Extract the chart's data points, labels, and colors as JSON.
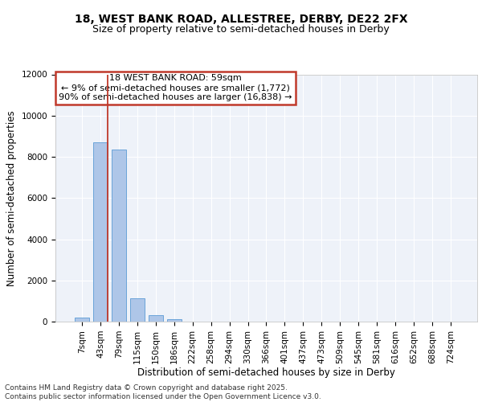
{
  "title_line1": "18, WEST BANK ROAD, ALLESTREE, DERBY, DE22 2FX",
  "title_line2": "Size of property relative to semi-detached houses in Derby",
  "xlabel": "Distribution of semi-detached houses by size in Derby",
  "ylabel": "Number of semi-detached properties",
  "categories": [
    "7sqm",
    "43sqm",
    "79sqm",
    "115sqm",
    "150sqm",
    "186sqm",
    "222sqm",
    "258sqm",
    "294sqm",
    "330sqm",
    "366sqm",
    "401sqm",
    "437sqm",
    "473sqm",
    "509sqm",
    "545sqm",
    "581sqm",
    "616sqm",
    "652sqm",
    "688sqm",
    "724sqm"
  ],
  "values": [
    200,
    8700,
    8350,
    1150,
    330,
    130,
    0,
    0,
    0,
    0,
    0,
    0,
    0,
    0,
    0,
    0,
    0,
    0,
    0,
    0,
    0
  ],
  "bar_color": "#aec6e8",
  "bar_edge_color": "#5b9bd5",
  "vline_x": 1.4,
  "vline_color": "#c0392b",
  "annotation_title": "18 WEST BANK ROAD: 59sqm",
  "annotation_line2": "← 9% of semi-detached houses are smaller (1,772)",
  "annotation_line3": "90% of semi-detached houses are larger (16,838) →",
  "annotation_box_color": "#c0392b",
  "ylim": [
    0,
    12000
  ],
  "yticks": [
    0,
    2000,
    4000,
    6000,
    8000,
    10000,
    12000
  ],
  "footnote_line1": "Contains HM Land Registry data © Crown copyright and database right 2025.",
  "footnote_line2": "Contains public sector information licensed under the Open Government Licence v3.0.",
  "bg_color": "#eef2f9",
  "grid_color": "#ffffff",
  "title_fontsize": 10,
  "subtitle_fontsize": 9,
  "axis_label_fontsize": 8.5,
  "tick_fontsize": 7.5,
  "annotation_fontsize": 8,
  "footnote_fontsize": 6.5
}
